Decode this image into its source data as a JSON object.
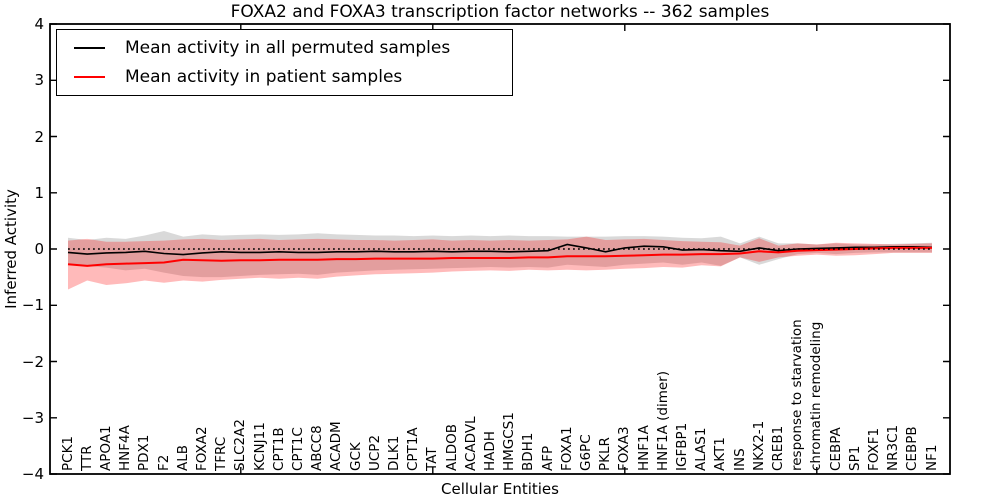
{
  "chart_data": {
    "type": "line",
    "title": "FOXA2 and FOXA3 transcription factor networks -- 362 samples",
    "xlabel": "Cellular Entities",
    "ylabel": "Inferred Activity",
    "ylim": [
      -4,
      4
    ],
    "yticks": [
      -4,
      -3,
      -2,
      -1,
      0,
      1,
      2,
      3,
      4
    ],
    "x_major_tick_indices": [
      9,
      19,
      29,
      39
    ],
    "grid": false,
    "legend_position": "upper left",
    "reference_line": {
      "y": 0,
      "style": "dotted",
      "color": "#000000"
    },
    "categories": [
      "PCK1",
      "TTR",
      "APOA1",
      "HNF4A",
      "PDX1",
      "F2",
      "ALB",
      "FOXA2",
      "TFRC",
      "SLC2A2",
      "KCNJ11",
      "CPT1B",
      "CPT1C",
      "ABCC8",
      "ACADM",
      "GCK",
      "UCP2",
      "DLK1",
      "CPT1A",
      "TAT",
      "ALDOB",
      "ACADVL",
      "HADH",
      "HMGCS1",
      "BDH1",
      "AFP",
      "FOXA1",
      "G6PC",
      "PKLR",
      "FOXA3",
      "HNF1A",
      "HNF1A (dimer)",
      "IGFBP1",
      "ALAS1",
      "AKT1",
      "INS",
      "NKX2-1",
      "CREB1",
      "response to starvation",
      "chromatin remodeling",
      "CEBPA",
      "SP1",
      "FOXF1",
      "NR3C1",
      "CEBPB",
      "NF1"
    ],
    "series": [
      {
        "name": "Mean activity in all permuted samples",
        "color": "#000000",
        "style": "solid",
        "values": [
          -0.06,
          -0.09,
          -0.07,
          -0.06,
          -0.04,
          -0.08,
          -0.1,
          -0.07,
          -0.05,
          -0.06,
          -0.06,
          -0.05,
          -0.06,
          -0.06,
          -0.05,
          -0.05,
          -0.04,
          -0.05,
          -0.05,
          -0.04,
          -0.05,
          -0.04,
          -0.04,
          -0.05,
          -0.04,
          -0.03,
          0.08,
          0.02,
          -0.05,
          0.02,
          0.05,
          0.04,
          -0.02,
          -0.01,
          -0.03,
          -0.04,
          0.02,
          -0.03,
          0.0,
          0.01,
          0.02,
          0.03,
          0.03,
          0.04,
          0.04,
          0.03
        ]
      },
      {
        "name": "Mean activity in patient samples",
        "color": "#ff0000",
        "style": "solid",
        "values": [
          -0.27,
          -0.3,
          -0.27,
          -0.26,
          -0.25,
          -0.24,
          -0.19,
          -0.2,
          -0.21,
          -0.2,
          -0.2,
          -0.19,
          -0.19,
          -0.19,
          -0.18,
          -0.18,
          -0.17,
          -0.17,
          -0.17,
          -0.17,
          -0.16,
          -0.16,
          -0.16,
          -0.16,
          -0.15,
          -0.15,
          -0.13,
          -0.13,
          -0.13,
          -0.12,
          -0.11,
          -0.1,
          -0.1,
          -0.09,
          -0.09,
          -0.08,
          -0.04,
          -0.06,
          -0.03,
          -0.02,
          -0.01,
          0.0,
          0.01,
          0.02,
          0.02,
          0.02
        ]
      }
    ],
    "bands": [
      {
        "name": "permuted-samples-std-band",
        "color": "rgba(0,0,0,0.15)",
        "upper": [
          0.2,
          0.16,
          0.2,
          0.18,
          0.24,
          0.32,
          0.22,
          0.26,
          0.24,
          0.25,
          0.26,
          0.25,
          0.26,
          0.28,
          0.26,
          0.25,
          0.24,
          0.24,
          0.23,
          0.24,
          0.23,
          0.24,
          0.23,
          0.24,
          0.23,
          0.23,
          0.22,
          0.22,
          0.22,
          0.23,
          0.23,
          0.22,
          0.2,
          0.19,
          0.22,
          0.1,
          0.22,
          0.1,
          0.1,
          0.08,
          0.1,
          0.08,
          0.08,
          0.09,
          0.1,
          0.11
        ],
        "lower": [
          -0.26,
          -0.3,
          -0.33,
          -0.38,
          -0.35,
          -0.42,
          -0.48,
          -0.5,
          -0.5,
          -0.48,
          -0.46,
          -0.45,
          -0.44,
          -0.46,
          -0.42,
          -0.4,
          -0.38,
          -0.37,
          -0.36,
          -0.35,
          -0.34,
          -0.33,
          -0.32,
          -0.33,
          -0.32,
          -0.33,
          -0.28,
          -0.3,
          -0.32,
          -0.28,
          -0.26,
          -0.24,
          -0.28,
          -0.24,
          -0.3,
          -0.15,
          -0.28,
          -0.18,
          -0.09,
          -0.07,
          -0.09,
          -0.07,
          -0.06,
          -0.06,
          -0.06,
          -0.06
        ]
      },
      {
        "name": "patient-samples-std-band",
        "color": "rgba(255,0,0,0.27)",
        "upper": [
          0.15,
          0.18,
          0.13,
          0.13,
          0.14,
          0.15,
          0.17,
          0.18,
          0.16,
          0.17,
          0.18,
          0.16,
          0.17,
          0.18,
          0.17,
          0.16,
          0.16,
          0.15,
          0.16,
          0.17,
          0.15,
          0.16,
          0.15,
          0.16,
          0.15,
          0.16,
          0.17,
          0.22,
          0.16,
          0.17,
          0.18,
          0.16,
          0.14,
          0.13,
          0.12,
          0.06,
          0.19,
          0.06,
          0.1,
          0.08,
          0.11,
          0.1,
          0.09,
          0.08,
          0.09,
          0.1
        ],
        "lower": [
          -0.72,
          -0.56,
          -0.64,
          -0.61,
          -0.56,
          -0.6,
          -0.56,
          -0.58,
          -0.55,
          -0.53,
          -0.51,
          -0.53,
          -0.51,
          -0.53,
          -0.49,
          -0.47,
          -0.45,
          -0.44,
          -0.43,
          -0.42,
          -0.4,
          -0.39,
          -0.38,
          -0.39,
          -0.37,
          -0.38,
          -0.37,
          -0.38,
          -0.37,
          -0.35,
          -0.34,
          -0.32,
          -0.33,
          -0.29,
          -0.31,
          -0.15,
          -0.23,
          -0.15,
          -0.12,
          -0.1,
          -0.12,
          -0.11,
          -0.09,
          -0.07,
          -0.07,
          -0.07
        ]
      }
    ]
  }
}
